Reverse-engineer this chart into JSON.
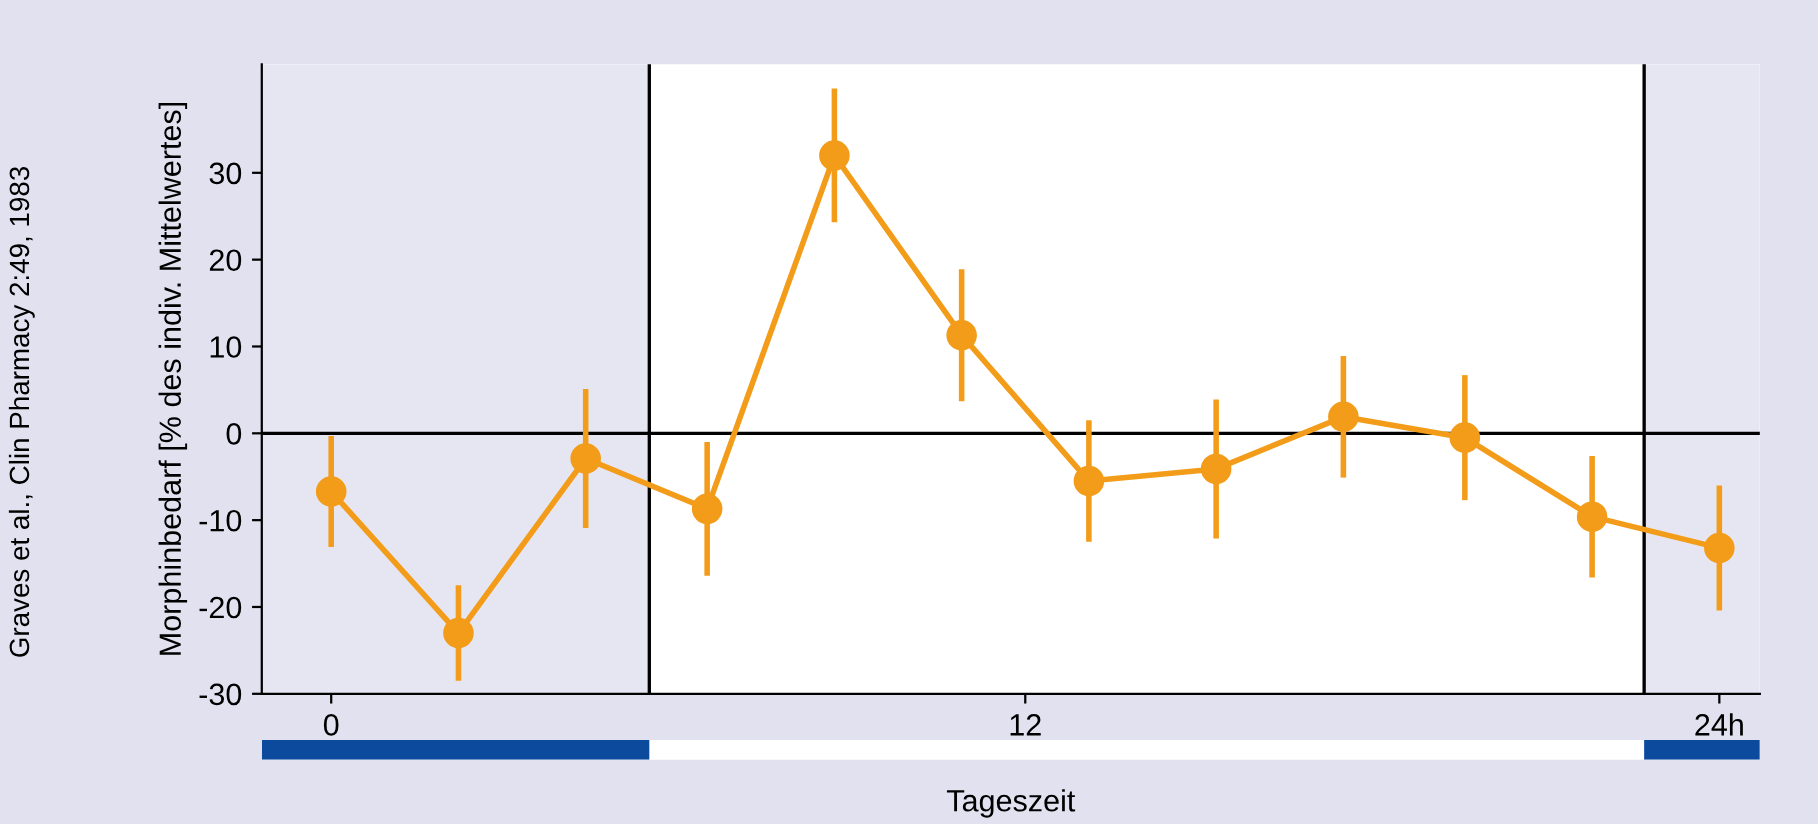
{
  "chart_data": {
    "type": "line",
    "xlabel": "Tageszeit",
    "ylabel": "Morphinbedarf [% des indiv. Mittelwertes]",
    "annotations": [
      "Graves et al., Clin Pharmacy 2:49, 1983"
    ],
    "series": [
      {
        "color": "#f29c1a",
        "x": [
          0,
          2.2,
          4.4,
          6.5,
          8.7,
          10.9,
          13.1,
          15.3,
          17.5,
          19.6,
          21.8,
          24
        ],
        "values": [
          -6.7,
          -23,
          -2.9,
          -8.7,
          32,
          11.3,
          -5.5,
          -4.1,
          1.9,
          -0.5,
          -9.6,
          -13.2
        ],
        "errors": [
          6.4,
          5.5,
          8,
          7.7,
          7.7,
          7.6,
          7,
          8,
          7,
          7.2,
          7,
          7.2
        ]
      }
    ],
    "xlim": [
      -1.2,
      24.7
    ],
    "xticks": [
      0,
      12,
      {
        "value": 24,
        "label": "24h"
      }
    ],
    "ylim": [
      -30,
      42.5
    ],
    "yticks": [
      -30,
      -20,
      -10,
      0,
      10,
      20,
      30
    ],
    "ref_lines": [
      {
        "axis": "y",
        "value": 0,
        "color": "#000000"
      },
      {
        "axis": "x",
        "value": 5.5,
        "color": "#000000"
      },
      {
        "axis": "x",
        "value": 22.7,
        "color": "#000000"
      }
    ],
    "bands": [
      {
        "axis": "x",
        "from": -1.2,
        "to": 5.5,
        "color": "#e6e6f2"
      },
      {
        "axis": "x",
        "from": 22.7,
        "to": 24.7,
        "color": "#e6e6f2"
      }
    ],
    "marker": "circle",
    "line_style": "solid",
    "grid": false,
    "legend": false
  }
}
